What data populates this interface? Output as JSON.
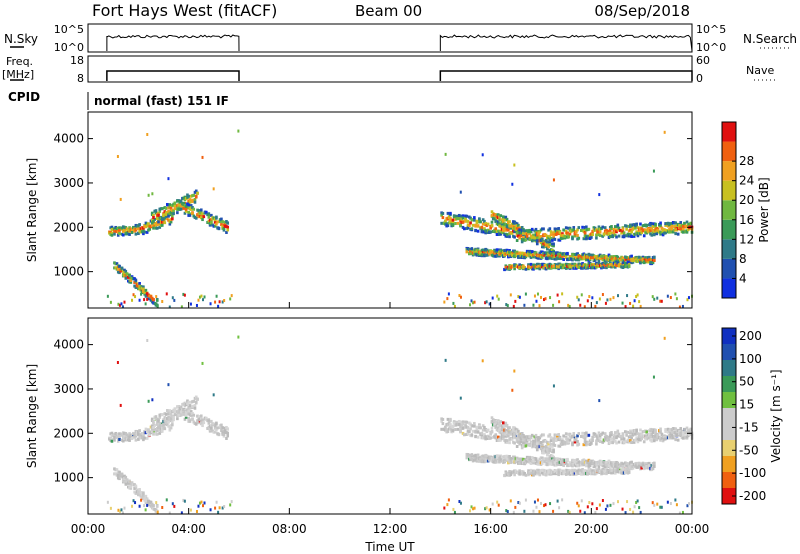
{
  "header": {
    "station": "Fort Hays West (fitACF)",
    "beam": "Beam 00",
    "date": "08/Sep/2018"
  },
  "top_panels": {
    "nsky_label": "N.Sky",
    "nsky_ticks": [
      "10^5",
      "10^0"
    ],
    "nsearch_label": "N.Search",
    "nsearch_ticks": [
      "10^5",
      "10^0"
    ],
    "freq_label_1": "Freq.",
    "freq_label_2": "[MHz]",
    "freq_ticks": [
      "18",
      "8"
    ],
    "nave_label": "Nave",
    "nave_ticks": [
      "60",
      "0"
    ],
    "cpid_label": "CPID",
    "cpid_value": "normal (fast) 151 IF"
  },
  "colors": {
    "power_scale": [
      "#1030e0",
      "#2050b0",
      "#2f7a88",
      "#3a9a58",
      "#70b840",
      "#c8c020",
      "#f0a020",
      "#f06010",
      "#e01010"
    ],
    "velocity_scale": [
      "#e01010",
      "#f06010",
      "#f0a020",
      "#e8d070",
      "#cccccc",
      "#cccccc",
      "#70c040",
      "#3a9a58",
      "#2f7a88",
      "#2050b0",
      "#1030c0"
    ]
  },
  "chart_data": [
    {
      "type": "heatmap",
      "name": "power",
      "ylabel": "Slant Range [km]",
      "yticks": [
        "1000",
        "2000",
        "3000",
        "4000"
      ],
      "ylim": [
        180,
        4600
      ],
      "xlim_hours": [
        0,
        24
      ],
      "colorbar_label": "Power [dB]",
      "colorbar_ticks": [
        "4",
        "8",
        "12",
        "16",
        "20",
        "24",
        "28"
      ],
      "observed_intervals_UT": [
        [
          "00:45",
          "06:00"
        ],
        [
          "14:00",
          "24:00"
        ]
      ]
    },
    {
      "type": "heatmap",
      "name": "velocity",
      "ylabel": "Slant Range [km]",
      "yticks": [
        "1000",
        "2000",
        "3000",
        "4000"
      ],
      "ylim": [
        180,
        4600
      ],
      "xlim_hours": [
        0,
        24
      ],
      "colorbar_label": "Velocity [m s⁻¹]",
      "colorbar_ticks": [
        "200",
        "100",
        "50",
        "15",
        "-15",
        "-50",
        "-100",
        "-200"
      ],
      "xlabel": "Time UT",
      "xticks": [
        "00:00",
        "04:00",
        "08:00",
        "12:00",
        "16:00",
        "20:00",
        "00:00"
      ]
    }
  ]
}
